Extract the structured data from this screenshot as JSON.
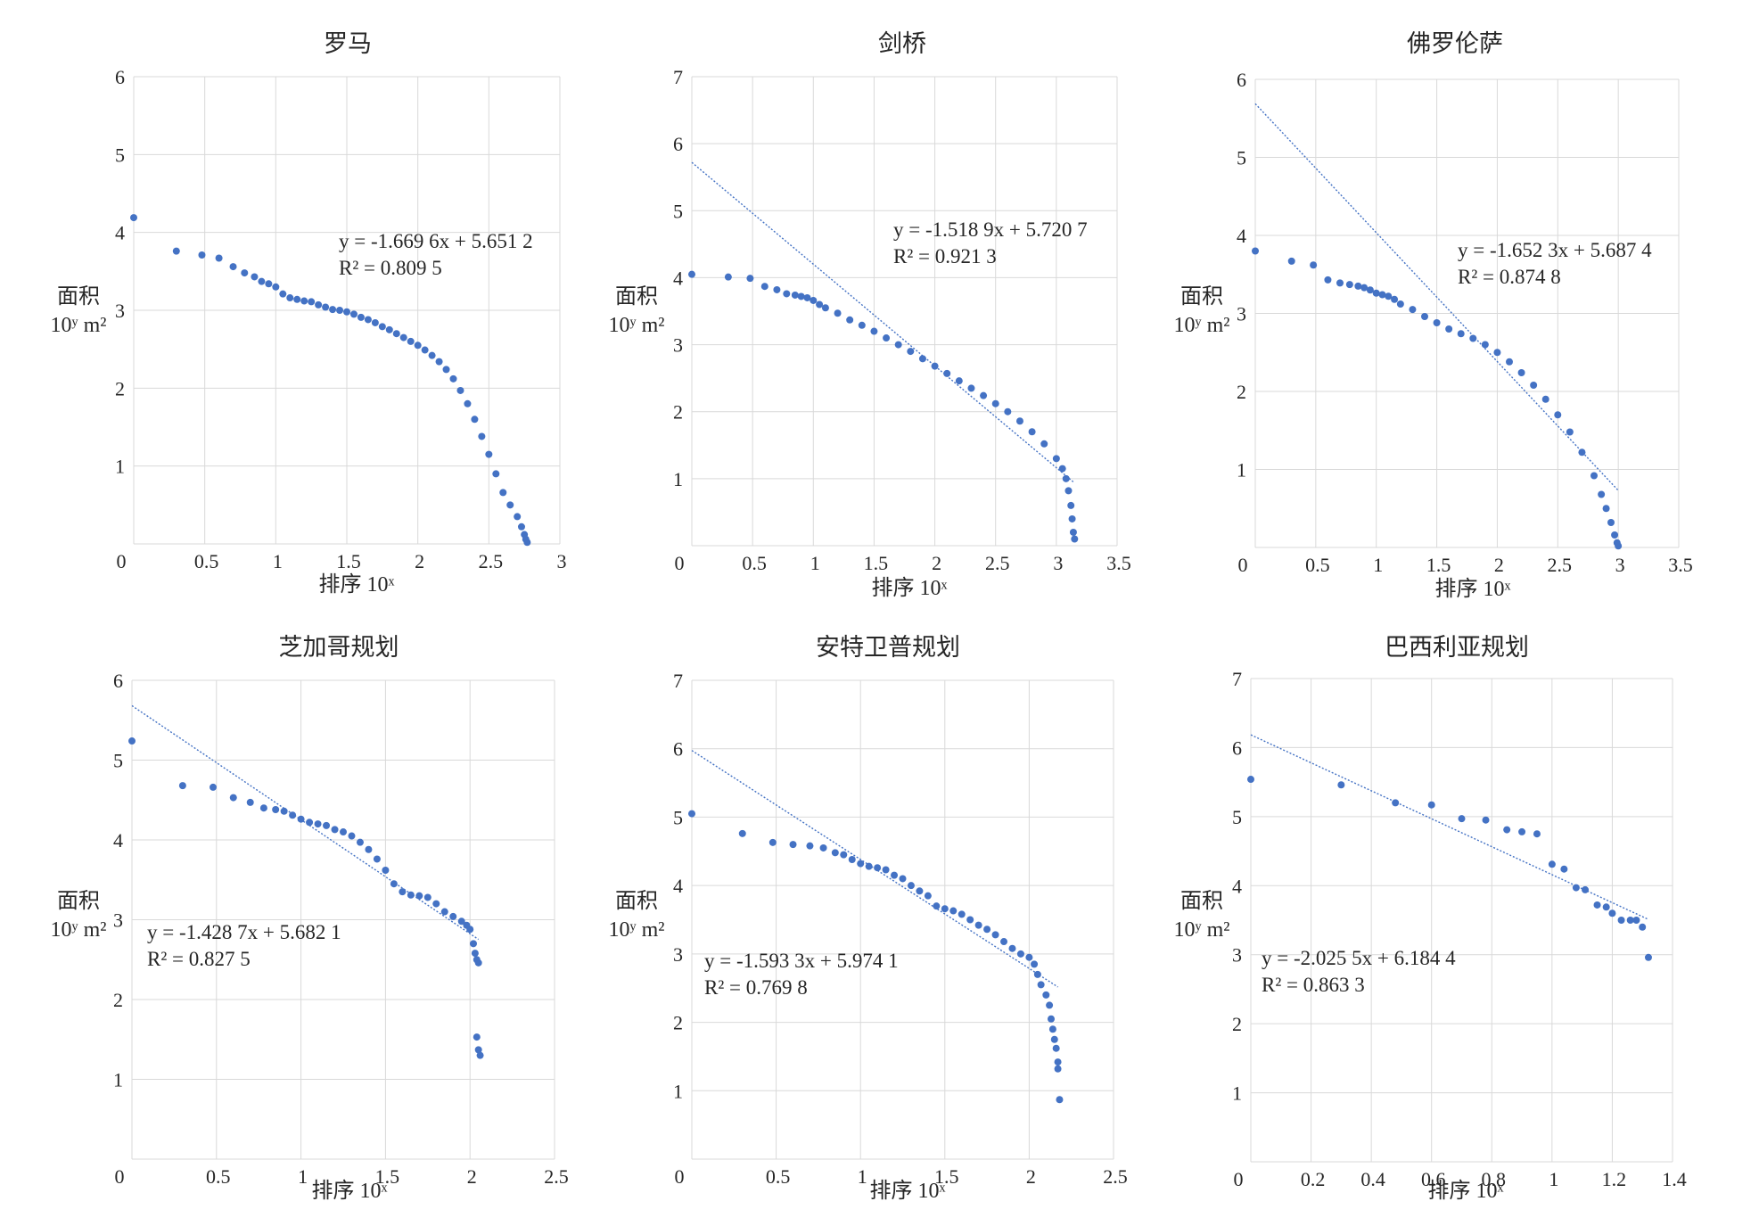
{
  "axis_labels": {
    "y_line1": "面积",
    "y_line2": "10ʸ m²",
    "x": "排序 10ˣ"
  },
  "colors": {
    "marker": "#4472c4",
    "trend": "#4472c4",
    "grid": "#d9d9d9"
  },
  "chart_data": [
    {
      "type": "scatter",
      "title": "罗马",
      "xlim": [
        0,
        3
      ],
      "xticks": [
        0,
        0.5,
        1,
        1.5,
        2,
        2.5,
        3
      ],
      "ylim": [
        0,
        6
      ],
      "yticks": [
        1,
        2,
        3,
        4,
        5,
        6
      ],
      "trendline": null,
      "equation": "y = -1.669 6x + 5.651 2",
      "r2": "R² = 0.809 5",
      "points": [
        [
          0,
          4.19
        ],
        [
          0.3,
          3.76
        ],
        [
          0.48,
          3.71
        ],
        [
          0.6,
          3.67
        ],
        [
          0.7,
          3.56
        ],
        [
          0.78,
          3.48
        ],
        [
          0.85,
          3.43
        ],
        [
          0.9,
          3.37
        ],
        [
          0.95,
          3.34
        ],
        [
          1.0,
          3.3
        ],
        [
          1.05,
          3.21
        ],
        [
          1.1,
          3.16
        ],
        [
          1.15,
          3.14
        ],
        [
          1.2,
          3.12
        ],
        [
          1.25,
          3.11
        ],
        [
          1.3,
          3.07
        ],
        [
          1.35,
          3.04
        ],
        [
          1.4,
          3.01
        ],
        [
          1.45,
          3.0
        ],
        [
          1.5,
          2.98
        ],
        [
          1.55,
          2.95
        ],
        [
          1.6,
          2.91
        ],
        [
          1.65,
          2.88
        ],
        [
          1.7,
          2.84
        ],
        [
          1.75,
          2.79
        ],
        [
          1.8,
          2.75
        ],
        [
          1.85,
          2.7
        ],
        [
          1.9,
          2.65
        ],
        [
          1.95,
          2.6
        ],
        [
          2.0,
          2.55
        ],
        [
          2.05,
          2.49
        ],
        [
          2.1,
          2.42
        ],
        [
          2.15,
          2.34
        ],
        [
          2.2,
          2.24
        ],
        [
          2.25,
          2.12
        ],
        [
          2.3,
          1.97
        ],
        [
          2.35,
          1.8
        ],
        [
          2.4,
          1.6
        ],
        [
          2.45,
          1.38
        ],
        [
          2.5,
          1.15
        ],
        [
          2.55,
          0.9
        ],
        [
          2.6,
          0.66
        ],
        [
          2.65,
          0.5
        ],
        [
          2.7,
          0.35
        ],
        [
          2.73,
          0.22
        ],
        [
          2.75,
          0.12
        ],
        [
          2.76,
          0.06
        ],
        [
          2.77,
          0.02
        ]
      ]
    },
    {
      "type": "scatter",
      "title": "剑桥",
      "xlim": [
        0,
        3.5
      ],
      "xticks": [
        0,
        0.5,
        1,
        1.5,
        2,
        2.5,
        3,
        3.5
      ],
      "ylim": [
        0,
        7
      ],
      "yticks": [
        1,
        2,
        3,
        4,
        5,
        6,
        7
      ],
      "trendline": {
        "slope": -1.5189,
        "intercept": 5.7207,
        "x_range": [
          0,
          3.15
        ]
      },
      "equation": "y = -1.518 9x + 5.720 7",
      "r2": "R² = 0.921 3",
      "points": [
        [
          0,
          4.05
        ],
        [
          0.3,
          4.01
        ],
        [
          0.48,
          3.99
        ],
        [
          0.6,
          3.87
        ],
        [
          0.7,
          3.82
        ],
        [
          0.78,
          3.76
        ],
        [
          0.85,
          3.74
        ],
        [
          0.9,
          3.72
        ],
        [
          0.95,
          3.7
        ],
        [
          1.0,
          3.66
        ],
        [
          1.05,
          3.6
        ],
        [
          1.1,
          3.55
        ],
        [
          1.2,
          3.47
        ],
        [
          1.3,
          3.37
        ],
        [
          1.4,
          3.29
        ],
        [
          1.5,
          3.2
        ],
        [
          1.6,
          3.1
        ],
        [
          1.7,
          3.0
        ],
        [
          1.8,
          2.9
        ],
        [
          1.9,
          2.79
        ],
        [
          2.0,
          2.68
        ],
        [
          2.1,
          2.57
        ],
        [
          2.2,
          2.46
        ],
        [
          2.3,
          2.35
        ],
        [
          2.4,
          2.24
        ],
        [
          2.5,
          2.12
        ],
        [
          2.6,
          2.0
        ],
        [
          2.7,
          1.86
        ],
        [
          2.8,
          1.7
        ],
        [
          2.9,
          1.52
        ],
        [
          3.0,
          1.3
        ],
        [
          3.05,
          1.15
        ],
        [
          3.08,
          1.0
        ],
        [
          3.1,
          0.82
        ],
        [
          3.12,
          0.6
        ],
        [
          3.13,
          0.4
        ],
        [
          3.14,
          0.2
        ],
        [
          3.15,
          0.1
        ]
      ]
    },
    {
      "type": "scatter",
      "title": "佛罗伦萨",
      "xlim": [
        0,
        3.5
      ],
      "xticks": [
        0,
        0.5,
        1,
        1.5,
        2,
        2.5,
        3,
        3.5
      ],
      "ylim": [
        0,
        6
      ],
      "yticks": [
        1,
        2,
        3,
        4,
        5,
        6
      ],
      "trendline": {
        "slope": -1.6523,
        "intercept": 5.6874,
        "x_range": [
          0,
          3.0
        ]
      },
      "equation": "y = -1.652 3x + 5.687 4",
      "r2": "R² = 0.874 8",
      "points": [
        [
          0,
          3.8
        ],
        [
          0.3,
          3.67
        ],
        [
          0.48,
          3.62
        ],
        [
          0.6,
          3.43
        ],
        [
          0.7,
          3.39
        ],
        [
          0.78,
          3.37
        ],
        [
          0.85,
          3.35
        ],
        [
          0.9,
          3.33
        ],
        [
          0.95,
          3.3
        ],
        [
          1.0,
          3.26
        ],
        [
          1.05,
          3.24
        ],
        [
          1.1,
          3.22
        ],
        [
          1.15,
          3.18
        ],
        [
          1.2,
          3.12
        ],
        [
          1.3,
          3.05
        ],
        [
          1.4,
          2.96
        ],
        [
          1.5,
          2.88
        ],
        [
          1.6,
          2.8
        ],
        [
          1.7,
          2.74
        ],
        [
          1.8,
          2.68
        ],
        [
          1.9,
          2.6
        ],
        [
          2.0,
          2.5
        ],
        [
          2.1,
          2.38
        ],
        [
          2.2,
          2.24
        ],
        [
          2.3,
          2.08
        ],
        [
          2.4,
          1.9
        ],
        [
          2.5,
          1.7
        ],
        [
          2.6,
          1.48
        ],
        [
          2.7,
          1.22
        ],
        [
          2.8,
          0.92
        ],
        [
          2.86,
          0.68
        ],
        [
          2.9,
          0.5
        ],
        [
          2.94,
          0.32
        ],
        [
          2.97,
          0.16
        ],
        [
          2.99,
          0.06
        ],
        [
          3.0,
          0.02
        ]
      ]
    },
    {
      "type": "scatter",
      "title": "芝加哥规划",
      "xlim": [
        0,
        2.5
      ],
      "xticks": [
        0,
        0.5,
        1,
        1.5,
        2,
        2.5
      ],
      "ylim": [
        0,
        6
      ],
      "yticks": [
        1,
        2,
        3,
        4,
        5,
        6
      ],
      "trendline": {
        "slope": -1.4287,
        "intercept": 5.6821,
        "x_range": [
          0,
          2.05
        ]
      },
      "equation": "y = -1.428 7x + 5.682 1",
      "r2": "R² = 0.827 5",
      "points": [
        [
          0,
          5.24
        ],
        [
          0.3,
          4.68
        ],
        [
          0.48,
          4.66
        ],
        [
          0.6,
          4.53
        ],
        [
          0.7,
          4.47
        ],
        [
          0.78,
          4.4
        ],
        [
          0.85,
          4.38
        ],
        [
          0.9,
          4.36
        ],
        [
          0.95,
          4.31
        ],
        [
          1.0,
          4.26
        ],
        [
          1.05,
          4.22
        ],
        [
          1.1,
          4.2
        ],
        [
          1.15,
          4.18
        ],
        [
          1.2,
          4.13
        ],
        [
          1.25,
          4.1
        ],
        [
          1.3,
          4.05
        ],
        [
          1.35,
          3.97
        ],
        [
          1.4,
          3.88
        ],
        [
          1.45,
          3.76
        ],
        [
          1.5,
          3.62
        ],
        [
          1.55,
          3.45
        ],
        [
          1.6,
          3.35
        ],
        [
          1.65,
          3.31
        ],
        [
          1.7,
          3.3
        ],
        [
          1.75,
          3.28
        ],
        [
          1.8,
          3.2
        ],
        [
          1.85,
          3.1
        ],
        [
          1.9,
          3.04
        ],
        [
          1.95,
          2.98
        ],
        [
          1.98,
          2.93
        ],
        [
          2.0,
          2.88
        ],
        [
          2.02,
          2.7
        ],
        [
          2.03,
          2.58
        ],
        [
          2.04,
          2.5
        ],
        [
          2.05,
          2.46
        ],
        [
          2.04,
          1.53
        ],
        [
          2.05,
          1.37
        ],
        [
          2.06,
          1.3
        ]
      ]
    },
    {
      "type": "scatter",
      "title": "安特卫普规划",
      "xlim": [
        0,
        2.5
      ],
      "xticks": [
        0,
        0.5,
        1,
        1.5,
        2,
        2.5
      ],
      "ylim": [
        0,
        7
      ],
      "yticks": [
        1,
        2,
        3,
        4,
        5,
        6,
        7
      ],
      "trendline": {
        "slope": -1.5933,
        "intercept": 5.9741,
        "x_range": [
          0,
          2.17
        ]
      },
      "equation": "y = -1.593 3x + 5.974 1",
      "r2": "R² = 0.769 8",
      "points": [
        [
          0,
          5.05
        ],
        [
          0.3,
          4.76
        ],
        [
          0.48,
          4.63
        ],
        [
          0.6,
          4.6
        ],
        [
          0.7,
          4.58
        ],
        [
          0.78,
          4.55
        ],
        [
          0.85,
          4.48
        ],
        [
          0.9,
          4.45
        ],
        [
          0.95,
          4.38
        ],
        [
          1.0,
          4.32
        ],
        [
          1.05,
          4.28
        ],
        [
          1.1,
          4.26
        ],
        [
          1.15,
          4.23
        ],
        [
          1.2,
          4.15
        ],
        [
          1.25,
          4.1
        ],
        [
          1.3,
          4.0
        ],
        [
          1.35,
          3.92
        ],
        [
          1.4,
          3.85
        ],
        [
          1.45,
          3.7
        ],
        [
          1.5,
          3.66
        ],
        [
          1.55,
          3.63
        ],
        [
          1.6,
          3.58
        ],
        [
          1.65,
          3.5
        ],
        [
          1.7,
          3.42
        ],
        [
          1.75,
          3.36
        ],
        [
          1.8,
          3.28
        ],
        [
          1.85,
          3.18
        ],
        [
          1.9,
          3.08
        ],
        [
          1.95,
          3.0
        ],
        [
          2.0,
          2.95
        ],
        [
          2.03,
          2.85
        ],
        [
          2.05,
          2.7
        ],
        [
          2.07,
          2.55
        ],
        [
          2.1,
          2.4
        ],
        [
          2.12,
          2.25
        ],
        [
          2.13,
          2.05
        ],
        [
          2.14,
          1.9
        ],
        [
          2.15,
          1.75
        ],
        [
          2.16,
          1.62
        ],
        [
          2.17,
          1.42
        ],
        [
          2.17,
          1.32
        ],
        [
          2.18,
          0.87
        ]
      ]
    },
    {
      "type": "scatter",
      "title": "巴西利亚规划",
      "xlim": [
        0,
        1.4
      ],
      "xticks": [
        0,
        0.2,
        0.4,
        0.6,
        0.8,
        1,
        1.2,
        1.4
      ],
      "ylim": [
        0,
        7
      ],
      "yticks": [
        1,
        2,
        3,
        4,
        5,
        6,
        7
      ],
      "trendline": {
        "slope": -2.0255,
        "intercept": 6.1844,
        "x_range": [
          0,
          1.32
        ]
      },
      "equation": "y = -2.025 5x + 6.184 4",
      "r2": "R² = 0.863 3",
      "points": [
        [
          0,
          5.54
        ],
        [
          0.3,
          5.46
        ],
        [
          0.48,
          5.2
        ],
        [
          0.6,
          5.17
        ],
        [
          0.7,
          4.97
        ],
        [
          0.78,
          4.95
        ],
        [
          0.85,
          4.81
        ],
        [
          0.9,
          4.78
        ],
        [
          0.95,
          4.75
        ],
        [
          1.0,
          4.31
        ],
        [
          1.04,
          4.24
        ],
        [
          1.08,
          3.97
        ],
        [
          1.11,
          3.94
        ],
        [
          1.15,
          3.72
        ],
        [
          1.18,
          3.69
        ],
        [
          1.2,
          3.6
        ],
        [
          1.23,
          3.5
        ],
        [
          1.26,
          3.5
        ],
        [
          1.28,
          3.5
        ],
        [
          1.3,
          3.4
        ],
        [
          1.32,
          2.96
        ]
      ]
    }
  ]
}
